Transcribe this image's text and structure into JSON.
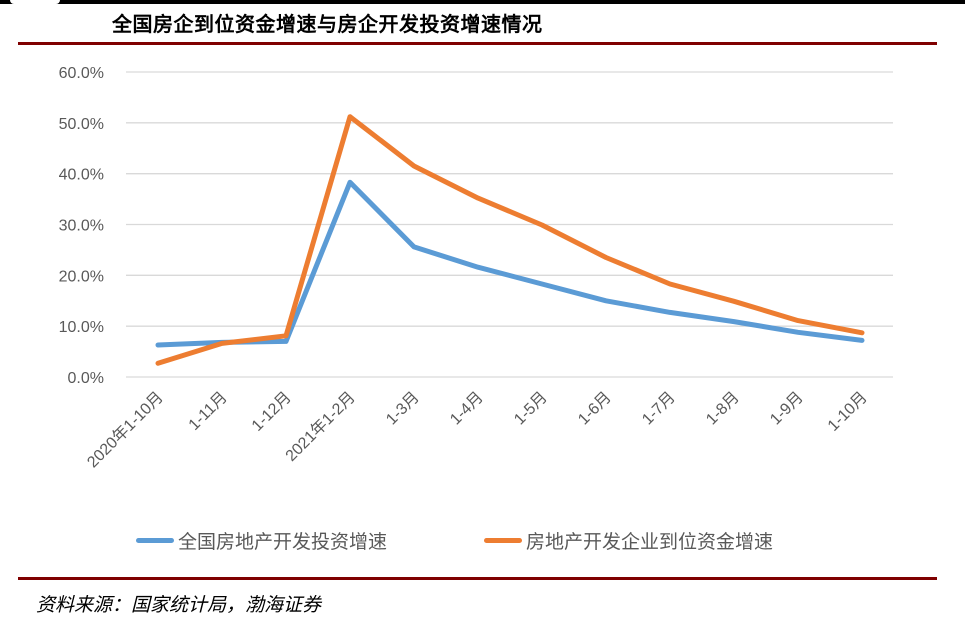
{
  "header": {
    "title": "全国房企到位资金增速与房企开发投资增速情况"
  },
  "footer": {
    "source": "资料来源：国家统计局，渤海证券"
  },
  "colors": {
    "rule": "#7f0000",
    "series_investment": "#5b9bd5",
    "series_funds": "#ed7d31",
    "grid": "#d9d9d9",
    "tick_text": "#595959"
  },
  "chart_data": {
    "type": "line",
    "title": "全国房企到位资金增速与房企开发投资增速情况",
    "xlabel": "",
    "ylabel": "",
    "ylim": [
      0,
      60
    ],
    "y_ticks": [
      "0.0%",
      "10.0%",
      "20.0%",
      "30.0%",
      "40.0%",
      "50.0%",
      "60.0%"
    ],
    "grid": true,
    "legend_position": "bottom",
    "categories": [
      "2020年1-10月",
      "1-11月",
      "1-12月",
      "2021年1-2月",
      "1-3月",
      "1-4月",
      "1-5月",
      "1-6月",
      "1-7月",
      "1-8月",
      "1-9月",
      "1-10月"
    ],
    "series": [
      {
        "name": "全国房地产开发投资增速",
        "color": "#5b9bd5",
        "values": [
          6.3,
          6.8,
          7.0,
          38.3,
          25.6,
          21.6,
          18.3,
          15.0,
          12.7,
          10.9,
          8.8,
          7.2
        ]
      },
      {
        "name": "房地产开发企业到位资金增速",
        "color": "#ed7d31",
        "values": [
          2.7,
          6.6,
          8.1,
          51.2,
          41.5,
          35.2,
          29.9,
          23.5,
          18.3,
          14.9,
          11.1,
          8.7
        ]
      }
    ]
  }
}
